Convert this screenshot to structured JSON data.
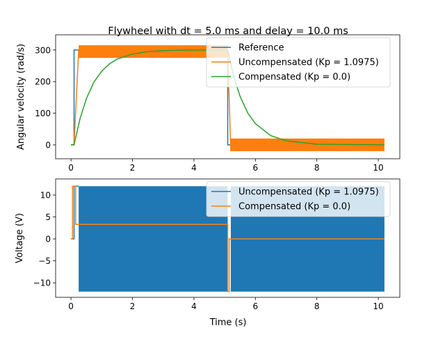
{
  "colors": {
    "c0": "#1f77b4",
    "c1": "#ff7f0e",
    "c2": "#2ca02c"
  },
  "chart_data": [
    {
      "type": "line",
      "title": "Flywheel with dt = 5.0 ms and delay = 10.0 ms",
      "xlabel": "",
      "ylabel": "Angular velocity (rad/s)",
      "xlim": [
        -0.5,
        10.7
      ],
      "ylim": [
        -44,
        348
      ],
      "xticks": [
        "0",
        "2",
        "4",
        "6",
        "8",
        "10"
      ],
      "yticks": [
        "0",
        "100",
        "200",
        "300"
      ],
      "legend_position": "top-right",
      "series": [
        {
          "name": "Reference",
          "color": "#1f77b4",
          "x": [
            0,
            0.1,
            0.1,
            5.1,
            5.1,
            10.2
          ],
          "y": [
            0,
            0,
            300,
            300,
            0,
            0
          ]
        },
        {
          "name": "Uncompensated (Kp = 1.0975)",
          "color": "#ff7f0e",
          "x": [
            0,
            0.1,
            0.25
          ],
          "y": [
            0,
            0,
            300
          ],
          "oscillation_bands": [
            {
              "x_start": 0.25,
              "x_end": 5.1,
              "low": 275,
              "high": 315
            },
            {
              "x_start": 5.2,
              "x_end": 10.2,
              "low": -20,
              "high": 20
            }
          ],
          "transition": {
            "x": [
              5.1,
              5.2
            ],
            "y": [
              300,
              -20
            ]
          }
        },
        {
          "name": "Compensated (Kp = 0.0)",
          "color": "#2ca02c",
          "x": [
            0,
            0.1,
            0.3,
            0.5,
            0.75,
            1.0,
            1.25,
            1.5,
            2.0,
            2.5,
            3.0,
            4.0,
            5.1,
            5.3,
            5.5,
            5.75,
            6.0,
            6.5,
            7.0,
            8.0,
            10.2
          ],
          "y": [
            0,
            0,
            85,
            146,
            199,
            233,
            256,
            271,
            287,
            295,
            298,
            300,
            300,
            215,
            154,
            101,
            67,
            29,
            13,
            2,
            0
          ]
        }
      ]
    },
    {
      "type": "line",
      "title": "",
      "xlabel": "Time (s)",
      "ylabel": "Voltage (V)",
      "xlim": [
        -0.5,
        10.7
      ],
      "ylim": [
        -13.3,
        13.65
      ],
      "xticks": [
        "0",
        "2",
        "4",
        "6",
        "8",
        "10"
      ],
      "yticks": [
        "−10",
        "−5",
        "0",
        "5",
        "10"
      ],
      "legend_position": "top-right",
      "series": [
        {
          "name": "Uncompensated (Kp = 1.0975)",
          "color": "#1f77b4",
          "x": [
            0,
            0.1,
            0.1,
            0.25
          ],
          "y": [
            0,
            0,
            12,
            12
          ],
          "oscillation_bands": [
            {
              "x_start": 0.25,
              "x_end": 5.1,
              "low": -12,
              "high": 12
            },
            {
              "x_start": 5.2,
              "x_end": 10.2,
              "low": -12,
              "high": 12
            }
          ]
        },
        {
          "name": "Compensated (Kp = 0.0)",
          "color": "#ff7f0e",
          "x": [
            0,
            0.05,
            0.05,
            0.15,
            0.15,
            5.1,
            5.1,
            5.15,
            5.15,
            10.2
          ],
          "y": [
            0,
            0,
            12,
            12,
            3.3,
            3.3,
            -12,
            -12,
            0,
            0
          ]
        }
      ]
    }
  ]
}
